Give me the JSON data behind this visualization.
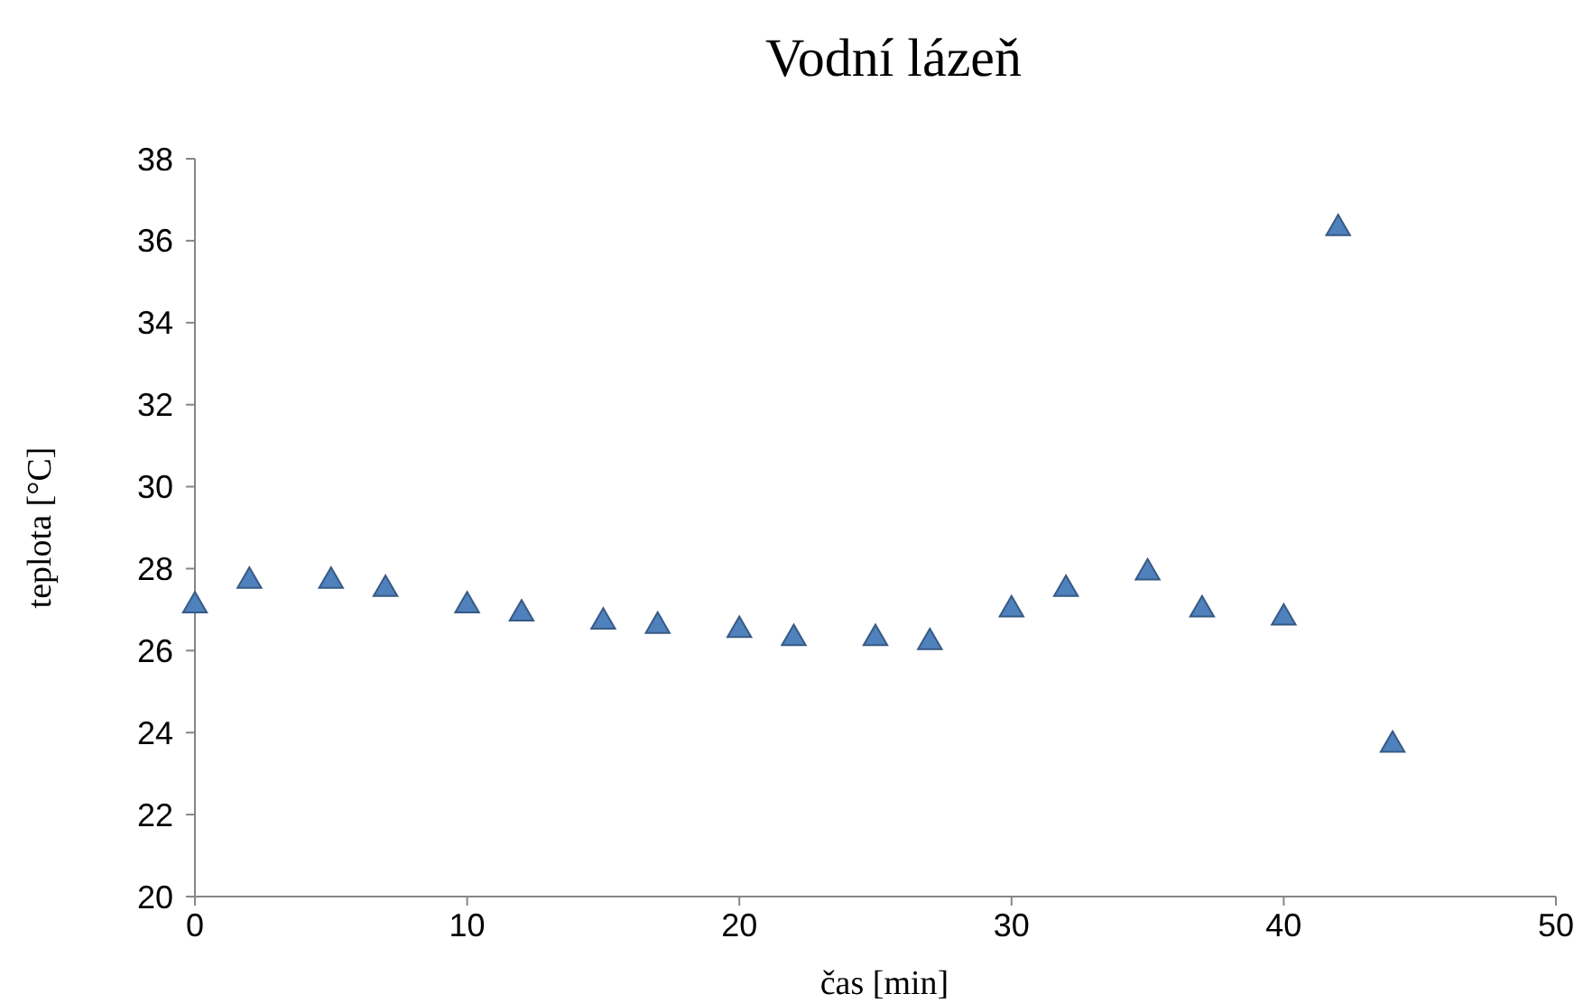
{
  "chart_data": {
    "type": "scatter",
    "title": "Vodní lázeň",
    "xlabel": "čas [min]",
    "ylabel": "teplota [°C]",
    "marker": "triangle",
    "grid": false,
    "xlim": [
      0,
      50
    ],
    "xticks": [
      0,
      10,
      20,
      30,
      40,
      50
    ],
    "ylim": [
      20,
      38
    ],
    "yticks": [
      20,
      22,
      24,
      26,
      28,
      30,
      32,
      34,
      36,
      38
    ],
    "series": [
      {
        "color": "#4f81bd",
        "x": [
          0,
          2,
          5,
          7,
          10,
          12,
          15,
          17,
          20,
          22,
          25,
          27,
          30,
          32,
          35,
          37,
          40,
          42,
          44
        ],
        "values": [
          27.1,
          27.7,
          27.7,
          27.5,
          27.1,
          26.9,
          26.7,
          26.6,
          26.5,
          26.3,
          26.3,
          26.2,
          27.0,
          27.5,
          27.9,
          27.0,
          26.8,
          36.3,
          23.7
        ]
      }
    ]
  }
}
